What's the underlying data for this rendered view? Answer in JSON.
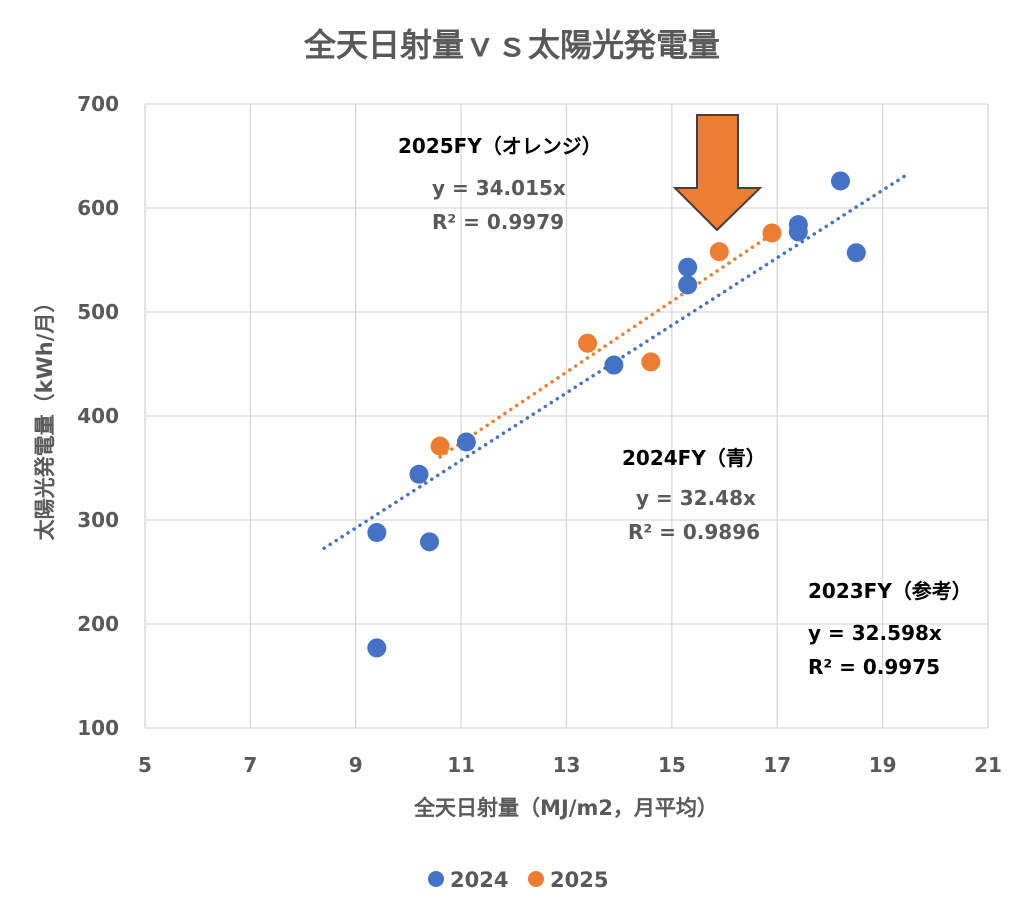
{
  "chart_data": {
    "type": "scatter",
    "title": "全天日射量ｖｓ太陽光発電量",
    "xlabel": "全天日射量（MJ/m2，月平均）",
    "ylabel": "太陽光発電量（kWh/月）",
    "xlim": [
      5,
      21
    ],
    "ylim": [
      100,
      700
    ],
    "x_ticks": [
      5,
      7,
      9,
      11,
      13,
      15,
      17,
      19,
      21
    ],
    "y_ticks": [
      100,
      200,
      300,
      400,
      500,
      600,
      700
    ],
    "grid": true,
    "legend_position": "bottom",
    "series": [
      {
        "name": "2024",
        "color": "#4472C4",
        "points": [
          {
            "x": 9.4,
            "y": 177
          },
          {
            "x": 9.4,
            "y": 288
          },
          {
            "x": 10.4,
            "y": 279
          },
          {
            "x": 10.2,
            "y": 344
          },
          {
            "x": 11.1,
            "y": 375
          },
          {
            "x": 13.9,
            "y": 449
          },
          {
            "x": 15.3,
            "y": 526
          },
          {
            "x": 15.3,
            "y": 543
          },
          {
            "x": 17.4,
            "y": 577
          },
          {
            "x": 17.4,
            "y": 584
          },
          {
            "x": 18.2,
            "y": 626
          },
          {
            "x": 18.5,
            "y": 557
          }
        ],
        "trendline": {
          "slope": 32.48,
          "x_range": [
            8.4,
            19.5
          ]
        }
      },
      {
        "name": "2025",
        "color": "#ED7D31",
        "points": [
          {
            "x": 10.6,
            "y": 371
          },
          {
            "x": 13.4,
            "y": 470
          },
          {
            "x": 14.6,
            "y": 452
          },
          {
            "x": 15.9,
            "y": 558
          },
          {
            "x": 16.9,
            "y": 576
          }
        ],
        "trendline": {
          "slope": 34.015,
          "x_range": [
            10.6,
            16.9
          ]
        }
      }
    ],
    "annotations": [
      {
        "title": "2025FY（オレンジ）",
        "equation": "y = 34.015x",
        "r2": "R² = 0.9979"
      },
      {
        "title": "2024FY（青）",
        "equation": "y = 32.48x",
        "r2": "R² = 0.9896"
      },
      {
        "title": "2023FY（参考）",
        "equation": "y = 32.598x",
        "r2": "R² = 0.9975"
      }
    ],
    "arrow_color": "#ED7D31"
  }
}
